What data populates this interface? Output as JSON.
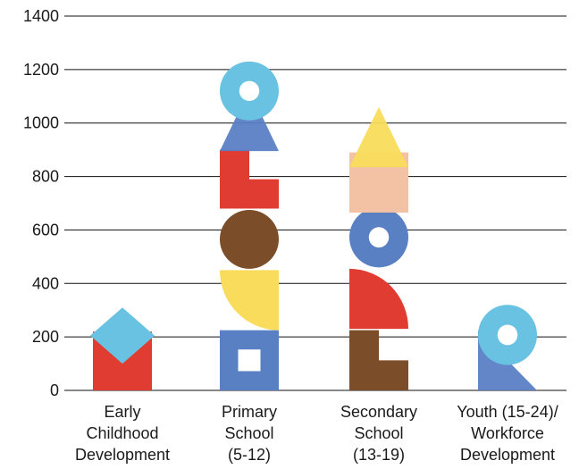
{
  "chart_data": {
    "type": "bar",
    "title": "",
    "xlabel": "",
    "ylabel": "",
    "ylim": [
      0,
      1400
    ],
    "yticks": [
      0,
      200,
      400,
      600,
      800,
      1000,
      1200,
      1400
    ],
    "grid": true,
    "categories": [
      [
        "Early",
        "Childhood",
        "Development"
      ],
      [
        "Primary",
        "School",
        "(5-12)"
      ],
      [
        "Secondary",
        "School",
        "(13-19)"
      ],
      [
        "Youth (15-24)/",
        "Workforce",
        "Development"
      ]
    ],
    "values": [
      230,
      1130,
      1060,
      230
    ],
    "bars": [
      {
        "category": 0,
        "blocks": [
          {
            "shape": "square",
            "color": "#e03c31",
            "from": 0,
            "to": 220
          },
          {
            "shape": "diamond",
            "color": "#6ac2e2",
            "from": 100,
            "to": 310
          }
        ]
      },
      {
        "category": 1,
        "blocks": [
          {
            "shape": "square-hole",
            "color": "#5a80c4",
            "from": 0,
            "to": 225
          },
          {
            "shape": "quarter-circle",
            "color": "#f9dc5c",
            "from": 225,
            "to": 450
          },
          {
            "shape": "circle",
            "color": "#7b4d28",
            "from": 455,
            "to": 675
          },
          {
            "shape": "L-shape",
            "color": "#e03c31",
            "from": 680,
            "to": 900
          },
          {
            "shape": "triangle",
            "color": "#5a80c4",
            "from": 895,
            "to": 1125
          },
          {
            "shape": "ring",
            "color": "#6ac2e2",
            "from": 1010,
            "to": 1230
          }
        ]
      },
      {
        "category": 2,
        "blocks": [
          {
            "shape": "L-shape",
            "color": "#7b4d28",
            "from": 0,
            "to": 225
          },
          {
            "shape": "quarter-circle",
            "color": "#e03c31",
            "from": 230,
            "to": 455
          },
          {
            "shape": "ring",
            "color": "#5a80c4",
            "from": 460,
            "to": 685
          },
          {
            "shape": "square",
            "color": "#f3c1a4",
            "from": 665,
            "to": 890
          },
          {
            "shape": "triangle",
            "color": "#f9dc5c",
            "from": 835,
            "to": 1060
          }
        ]
      },
      {
        "category": 3,
        "blocks": [
          {
            "shape": "triangle-corner",
            "color": "#5a80c4",
            "from": 0,
            "to": 225
          },
          {
            "shape": "ring",
            "color": "#6ac2e2",
            "from": 95,
            "to": 320
          }
        ]
      }
    ]
  }
}
